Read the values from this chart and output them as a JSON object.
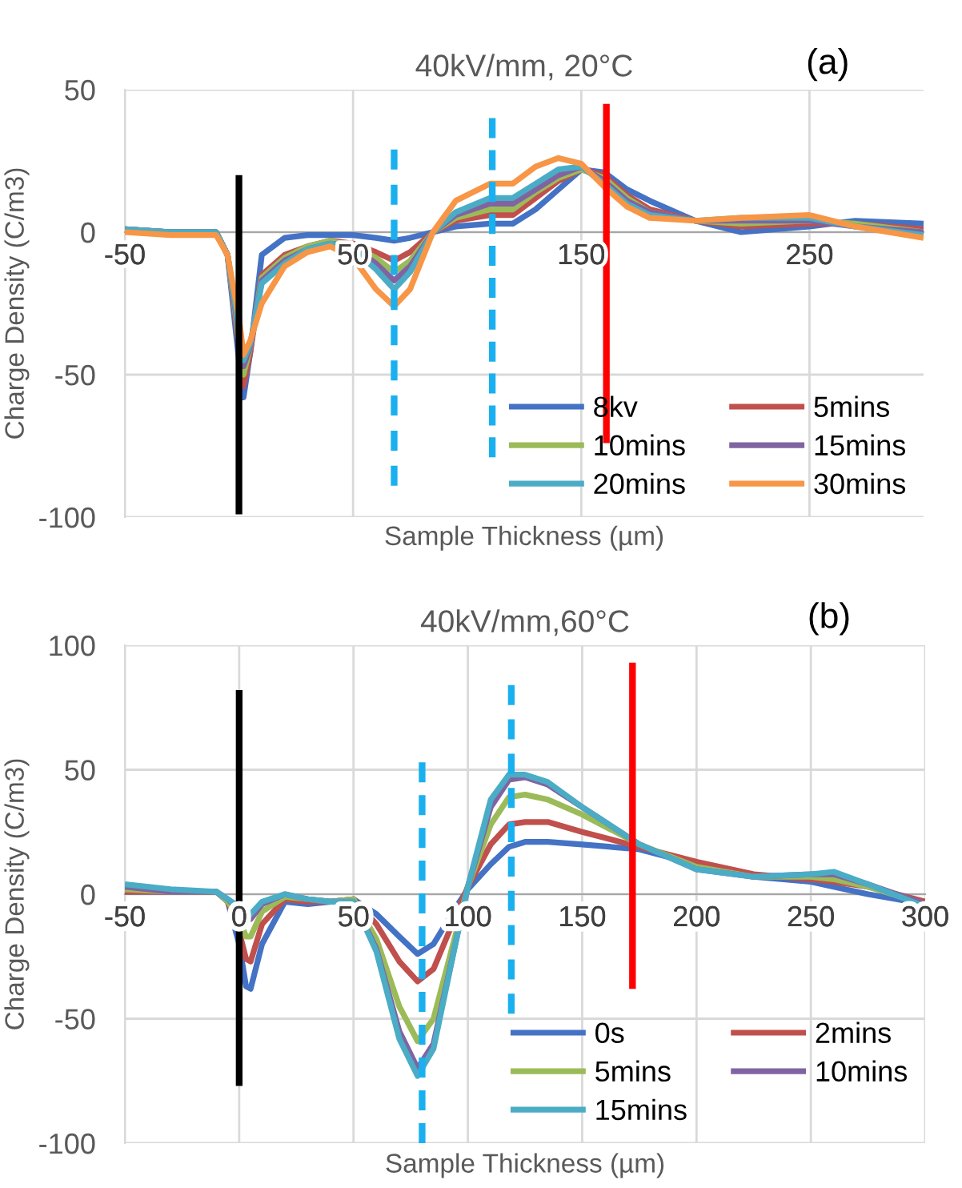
{
  "chart_data": [
    {
      "type": "line",
      "title": "40kV/mm, 20°C",
      "xlabel": "Sample Thickness (µm)",
      "ylabel": "Charge Density (C/m3)",
      "annotations": [
        "(a)"
      ],
      "x": [
        -50,
        -30,
        -10,
        -5,
        0,
        2,
        5,
        10,
        20,
        30,
        40,
        50,
        60,
        68,
        75,
        85,
        95,
        110,
        120,
        130,
        140,
        150,
        160,
        170,
        180,
        200,
        220,
        250,
        270,
        300
      ],
      "series": [
        {
          "name": "8kv",
          "color": "#4472c4",
          "values": [
            1,
            0,
            0,
            -8,
            -45,
            -58,
            -42,
            -8,
            -2,
            -1,
            -1,
            -1,
            -2,
            -3,
            -2,
            0,
            2,
            3,
            3,
            8,
            15,
            22,
            21,
            15,
            11,
            4,
            0,
            2,
            4,
            3
          ]
        },
        {
          "name": "5mins",
          "color": "#c0504d",
          "values": [
            1,
            0,
            0,
            -8,
            -40,
            -54,
            -42,
            -15,
            -8,
            -5,
            -3,
            -4,
            -7,
            -10,
            -7,
            0,
            4,
            6,
            6,
            12,
            18,
            22,
            20,
            13,
            8,
            4,
            2,
            3,
            3,
            1
          ]
        },
        {
          "name": "10mins",
          "color": "#9bbb59",
          "values": [
            1,
            0,
            0,
            -8,
            -38,
            -50,
            -40,
            -16,
            -9,
            -5,
            -3,
            -5,
            -9,
            -14,
            -10,
            0,
            5,
            8,
            8,
            14,
            19,
            22,
            19,
            12,
            7,
            4,
            3,
            4,
            3,
            0
          ]
        },
        {
          "name": "15mins",
          "color": "#8064a2",
          "values": [
            1,
            0,
            0,
            -8,
            -36,
            -47,
            -40,
            -17,
            -10,
            -6,
            -4,
            -5,
            -11,
            -17,
            -12,
            0,
            6,
            10,
            10,
            15,
            20,
            23,
            18,
            11,
            7,
            4,
            4,
            4,
            2,
            0
          ]
        },
        {
          "name": "20mins",
          "color": "#4bacc6",
          "values": [
            1,
            0,
            0,
            -8,
            -34,
            -45,
            -39,
            -18,
            -11,
            -6,
            -4,
            -6,
            -13,
            -20,
            -14,
            0,
            7,
            12,
            12,
            17,
            22,
            23,
            17,
            10,
            6,
            4,
            5,
            5,
            2,
            -1
          ]
        },
        {
          "name": "30mins",
          "color": "#f79646",
          "values": [
            0,
            -1,
            -1,
            -8,
            -30,
            -43,
            -38,
            -25,
            -12,
            -7,
            -5,
            -9,
            -20,
            -26,
            -20,
            0,
            11,
            17,
            17,
            23,
            26,
            24,
            16,
            9,
            5,
            4,
            5,
            6,
            2,
            -2
          ]
        },
        {
          "color": "#000000",
          "x": [
            0,
            0
          ],
          "values": [
            20,
            -99
          ],
          "line_style": "solid"
        },
        {
          "color": "#1ab0ef",
          "x": [
            68,
            68
          ],
          "values": [
            29,
            -89
          ],
          "line_style": "dashed"
        },
        {
          "color": "#1ab0ef",
          "x": [
            111,
            111
          ],
          "values": [
            40,
            -79
          ],
          "line_style": "dashed"
        },
        {
          "color": "#ff0000",
          "x": [
            161,
            161
          ],
          "values": [
            45,
            -74
          ],
          "line_style": "solid"
        }
      ],
      "xlim": [
        -50,
        300
      ],
      "xticks": [
        -50,
        50,
        150,
        250
      ],
      "ylim": [
        -100,
        50
      ],
      "yticks": [
        -100,
        -50,
        0,
        50
      ],
      "grid": true,
      "legend": "bottom right"
    },
    {
      "type": "line",
      "title": "40kV/mm,60°C",
      "xlabel": "Sample Thickness (µm)",
      "ylabel": "Charge Density (C/m3)",
      "annotations": [
        "(b)"
      ],
      "x": [
        -50,
        -30,
        -10,
        -5,
        0,
        3,
        5,
        10,
        20,
        30,
        40,
        50,
        60,
        70,
        78,
        85,
        95,
        100,
        110,
        118,
        125,
        135,
        150,
        175,
        200,
        225,
        250,
        260,
        275,
        300
      ],
      "series": [
        {
          "name": "0s",
          "color": "#4472c4",
          "values": [
            1,
            1,
            1,
            -3,
            -20,
            -37,
            -38,
            -20,
            -3,
            -4,
            -3,
            -2,
            -8,
            -17,
            -24,
            -20,
            -5,
            2,
            12,
            19,
            21,
            21,
            20,
            18,
            12,
            7,
            5,
            3,
            0,
            -4
          ]
        },
        {
          "name": "2mins",
          "color": "#c0504d",
          "values": [
            1,
            1,
            1,
            -3,
            -15,
            -26,
            -27,
            -12,
            -2,
            -3,
            -3,
            -2,
            -12,
            -27,
            -35,
            -30,
            -8,
            3,
            20,
            28,
            29,
            29,
            25,
            19,
            13,
            8,
            6,
            5,
            3,
            -3
          ]
        },
        {
          "name": "5mins",
          "color": "#9bbb59",
          "values": [
            2,
            1,
            1,
            -3,
            -10,
            -17,
            -17,
            -7,
            -1,
            -2,
            -3,
            -2,
            -18,
            -45,
            -59,
            -50,
            -15,
            3,
            28,
            39,
            40,
            38,
            32,
            20,
            11,
            7,
            7,
            6,
            3,
            -4
          ]
        },
        {
          "name": "10mins",
          "color": "#8064a2",
          "values": [
            3,
            1,
            1,
            -2,
            -6,
            -10,
            -10,
            -4,
            0,
            -2,
            -3,
            -3,
            -22,
            -55,
            -70,
            -60,
            -18,
            3,
            35,
            46,
            47,
            44,
            35,
            20,
            10,
            7,
            8,
            8,
            4,
            -4
          ]
        },
        {
          "name": "15mins",
          "color": "#4bacc6",
          "values": [
            4,
            2,
            1,
            -2,
            -5,
            -8,
            -8,
            -3,
            0,
            -2,
            -3,
            -3,
            -23,
            -58,
            -73,
            -62,
            -18,
            3,
            38,
            48,
            48,
            45,
            35,
            20,
            10,
            7,
            8,
            9,
            4,
            -5
          ]
        },
        {
          "color": "#000000",
          "x": [
            0,
            0
          ],
          "values": [
            82,
            -77
          ],
          "line_style": "solid"
        },
        {
          "color": "#1ab0ef",
          "x": [
            80,
            80
          ],
          "values": [
            53,
            -100
          ],
          "line_style": "dashed"
        },
        {
          "color": "#1ab0ef",
          "x": [
            119,
            119
          ],
          "values": [
            84,
            -48
          ],
          "line_style": "dashed"
        },
        {
          "color": "#ff0000",
          "x": [
            172,
            172
          ],
          "values": [
            93,
            -38
          ],
          "line_style": "solid"
        }
      ],
      "xlim": [
        -50,
        300
      ],
      "xticks": [
        -50,
        0,
        50,
        100,
        150,
        200,
        250,
        300
      ],
      "ylim": [
        -100,
        100
      ],
      "yticks": [
        -100,
        -50,
        0,
        50,
        100
      ],
      "grid": true,
      "legend": "bottom right"
    }
  ]
}
